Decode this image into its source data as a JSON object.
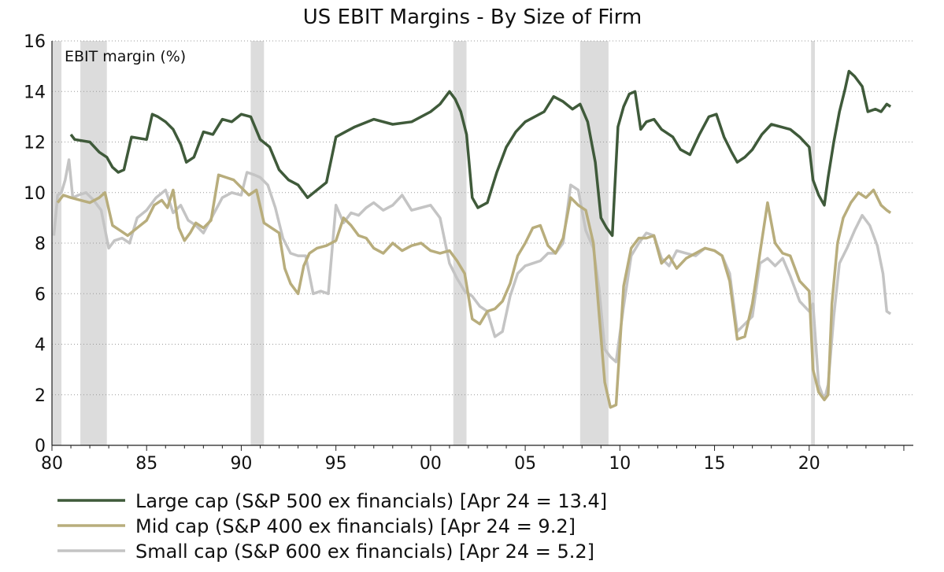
{
  "chart_data": {
    "type": "line",
    "title": "US EBIT Margins - By Size of Firm",
    "ylabel": "EBIT margin (%)",
    "xlabel": "",
    "xlim": [
      1980,
      2025.5
    ],
    "ylim": [
      0,
      16
    ],
    "y_ticks": [
      0,
      2,
      4,
      6,
      8,
      10,
      12,
      14,
      16
    ],
    "x_ticks": [
      {
        "value": 1980,
        "label": "80"
      },
      {
        "value": 1985,
        "label": "85"
      },
      {
        "value": 1990,
        "label": "90"
      },
      {
        "value": 1995,
        "label": "95"
      },
      {
        "value": 2000,
        "label": "00"
      },
      {
        "value": 2005,
        "label": "05"
      },
      {
        "value": 2010,
        "label": "10"
      },
      {
        "value": 2015,
        "label": "15"
      },
      {
        "value": 2020,
        "label": "20"
      }
    ],
    "grid": "horizontal dotted",
    "legend_position": "bottom",
    "recessions": [
      [
        1980.0,
        1980.5
      ],
      [
        1981.5,
        1982.9
      ],
      [
        1990.5,
        1991.2
      ],
      [
        2001.2,
        2001.9
      ],
      [
        2007.9,
        2009.4
      ],
      [
        2020.1,
        2020.3
      ]
    ],
    "series": [
      {
        "name": "Large cap (S&P 500 ex financials) [Apr 24 = 13.4]",
        "color": "#3f5a3a",
        "x": [
          1981,
          1981.2,
          1982,
          1982.5,
          1982.9,
          1983.2,
          1983.5,
          1983.8,
          1984.2,
          1985,
          1985.3,
          1985.6,
          1986,
          1986.4,
          1986.8,
          1987.1,
          1987.5,
          1988,
          1988.5,
          1989,
          1989.5,
          1990,
          1990.5,
          1991,
          1991.5,
          1992,
          1992.5,
          1993,
          1993.5,
          1994,
          1994.5,
          1995,
          1995.5,
          1996,
          1997,
          1998,
          1999,
          2000,
          2000.5,
          2001.0,
          2001.3,
          2001.6,
          2001.9,
          2002.2,
          2002.5,
          2003,
          2003.5,
          2004,
          2004.5,
          2005,
          2006,
          2006.5,
          2007,
          2007.5,
          2007.9,
          2008.3,
          2008.7,
          2009,
          2009.3,
          2009.6,
          2009.9,
          2010.2,
          2010.5,
          2010.8,
          2011.1,
          2011.4,
          2011.8,
          2012.2,
          2012.8,
          2013.2,
          2013.7,
          2014.2,
          2014.7,
          2015.1,
          2015.5,
          2015.9,
          2016.2,
          2016.6,
          2017,
          2017.5,
          2018,
          2018.5,
          2019,
          2019.5,
          2020.0,
          2020.2,
          2020.5,
          2020.8,
          2021.0,
          2021.3,
          2021.6,
          2021.9,
          2022.1,
          2022.4,
          2022.8,
          2023.1,
          2023.5,
          2023.8,
          2024.1,
          2024.3
        ],
        "values": [
          12.3,
          12.1,
          12.0,
          11.6,
          11.4,
          11.0,
          10.8,
          10.9,
          12.2,
          12.1,
          13.1,
          13.0,
          12.8,
          12.5,
          11.9,
          11.2,
          11.4,
          12.4,
          12.3,
          12.9,
          12.8,
          13.1,
          13.0,
          12.1,
          11.8,
          10.9,
          10.5,
          10.3,
          9.8,
          10.1,
          10.4,
          12.2,
          12.4,
          12.6,
          12.9,
          12.7,
          12.8,
          13.2,
          13.5,
          14.0,
          13.7,
          13.2,
          12.3,
          9.8,
          9.4,
          9.6,
          10.8,
          11.8,
          12.4,
          12.8,
          13.2,
          13.8,
          13.6,
          13.3,
          13.5,
          12.8,
          11.2,
          9.0,
          8.6,
          8.3,
          12.6,
          13.4,
          13.9,
          14.0,
          12.5,
          12.8,
          12.9,
          12.5,
          12.2,
          11.7,
          11.5,
          12.3,
          13.0,
          13.1,
          12.2,
          11.6,
          11.2,
          11.4,
          11.7,
          12.3,
          12.7,
          12.6,
          12.5,
          12.2,
          11.8,
          10.5,
          9.9,
          9.5,
          10.6,
          12.0,
          13.2,
          14.1,
          14.8,
          14.6,
          14.2,
          13.2,
          13.3,
          13.2,
          13.5,
          13.4
        ]
      },
      {
        "name": "Mid cap (S&P 400 ex financials) [Apr 24 = 9.2]",
        "color": "#b8ad7c",
        "x": [
          1980.3,
          1980.6,
          1981,
          1981.5,
          1982,
          1982.5,
          1982.8,
          1983.2,
          1983.6,
          1984,
          1984.5,
          1985,
          1985.4,
          1985.8,
          1986.1,
          1986.4,
          1986.7,
          1987,
          1987.3,
          1987.6,
          1988,
          1988.4,
          1988.8,
          1989.2,
          1989.6,
          1990,
          1990.4,
          1990.8,
          1991.2,
          1991.6,
          1992,
          1992.3,
          1992.6,
          1993.0,
          1993.3,
          1993.6,
          1994,
          1994.5,
          1995,
          1995.4,
          1995.8,
          1996.2,
          1996.6,
          1997,
          1997.5,
          1998,
          1998.5,
          1999,
          1999.5,
          2000,
          2000.5,
          2001,
          2001.4,
          2001.8,
          2002.2,
          2002.6,
          2003,
          2003.4,
          2003.8,
          2004.2,
          2004.6,
          2005,
          2005.4,
          2005.8,
          2006.2,
          2006.6,
          2007,
          2007.4,
          2007.8,
          2008.2,
          2008.6,
          2008.9,
          2009.2,
          2009.5,
          2009.8,
          2010.2,
          2010.6,
          2011,
          2011.4,
          2011.8,
          2012.2,
          2012.6,
          2013,
          2013.5,
          2014,
          2014.5,
          2015,
          2015.4,
          2015.8,
          2016.2,
          2016.6,
          2017,
          2017.4,
          2017.8,
          2018.2,
          2018.6,
          2019,
          2019.5,
          2020.0,
          2020.2,
          2020.5,
          2020.8,
          2021.0,
          2021.2,
          2021.5,
          2021.8,
          2022.2,
          2022.6,
          2023.0,
          2023.4,
          2023.8,
          2024.1,
          2024.3
        ],
        "values": [
          9.6,
          9.9,
          9.8,
          9.7,
          9.6,
          9.8,
          10.0,
          8.7,
          8.5,
          8.3,
          8.6,
          8.9,
          9.5,
          9.7,
          9.4,
          10.1,
          8.6,
          8.1,
          8.4,
          8.8,
          8.6,
          8.9,
          10.7,
          10.6,
          10.5,
          10.2,
          9.9,
          10.1,
          8.8,
          8.6,
          8.4,
          7.0,
          6.4,
          6.0,
          7.1,
          7.6,
          7.8,
          7.9,
          8.1,
          9.0,
          8.7,
          8.3,
          8.2,
          7.8,
          7.6,
          8.0,
          7.7,
          7.9,
          8.0,
          7.7,
          7.6,
          7.7,
          7.3,
          6.8,
          5.0,
          4.8,
          5.3,
          5.4,
          5.7,
          6.4,
          7.5,
          8.0,
          8.6,
          8.7,
          7.9,
          7.6,
          8.2,
          9.8,
          9.5,
          9.3,
          8.0,
          5.2,
          2.5,
          1.5,
          1.6,
          6.3,
          7.8,
          8.2,
          8.2,
          8.3,
          7.2,
          7.5,
          7.0,
          7.4,
          7.6,
          7.8,
          7.7,
          7.5,
          6.5,
          4.2,
          4.3,
          5.6,
          7.6,
          9.6,
          8.0,
          7.6,
          7.5,
          6.5,
          6.1,
          3.0,
          2.1,
          1.8,
          2.0,
          5.6,
          8.0,
          9.0,
          9.6,
          10.0,
          9.8,
          10.1,
          9.5,
          9.3,
          9.2
        ]
      },
      {
        "name": "Small cap (S&P 600 ex financials) [Apr 24 = 5.2]",
        "color": "#c4c4c4",
        "x": [
          1980.1,
          1980.3,
          1980.5,
          1980.7,
          1980.9,
          1981.1,
          1981.4,
          1981.8,
          1982.2,
          1982.6,
          1983.0,
          1983.3,
          1983.7,
          1984.1,
          1984.5,
          1985,
          1985.5,
          1986,
          1986.4,
          1986.8,
          1987.2,
          1987.6,
          1988,
          1988.5,
          1989,
          1989.5,
          1990,
          1990.3,
          1990.7,
          1991.0,
          1991.4,
          1991.8,
          1992.2,
          1992.6,
          1993.0,
          1993.4,
          1993.8,
          1994.2,
          1994.6,
          1995,
          1995.4,
          1995.8,
          1996.2,
          1996.6,
          1997.0,
          1997.5,
          1998,
          1998.5,
          1999,
          1999.5,
          2000,
          2000.5,
          2001,
          2001.4,
          2001.8,
          2002.2,
          2002.6,
          2003.0,
          2003.4,
          2003.8,
          2004.2,
          2004.6,
          2005,
          2005.4,
          2005.8,
          2006.2,
          2006.6,
          2007,
          2007.4,
          2007.8,
          2008.2,
          2008.6,
          2008.9,
          2009.2,
          2009.5,
          2009.8,
          2010.2,
          2010.6,
          2011,
          2011.4,
          2011.8,
          2012.2,
          2012.6,
          2013,
          2013.5,
          2014,
          2014.5,
          2015,
          2015.4,
          2015.8,
          2016.2,
          2016.6,
          2017,
          2017.4,
          2017.8,
          2018.2,
          2018.6,
          2019,
          2019.5,
          2020.0,
          2020.2,
          2020.5,
          2020.8,
          2021.0,
          2021.3,
          2021.6,
          2022.0,
          2022.4,
          2022.8,
          2023.2,
          2023.6,
          2023.9,
          2024.1,
          2024.3
        ],
        "values": [
          8.3,
          9.9,
          10.0,
          10.5,
          11.3,
          9.8,
          9.9,
          10.0,
          9.7,
          9.3,
          7.8,
          8.1,
          8.2,
          8.0,
          9.0,
          9.3,
          9.8,
          10.1,
          9.2,
          9.5,
          8.9,
          8.7,
          8.4,
          9.1,
          9.8,
          10.0,
          9.9,
          10.8,
          10.7,
          10.6,
          10.3,
          9.4,
          8.2,
          7.6,
          7.5,
          7.5,
          6.0,
          6.1,
          6.0,
          9.5,
          8.8,
          9.2,
          9.1,
          9.4,
          9.6,
          9.3,
          9.5,
          9.9,
          9.3,
          9.4,
          9.5,
          9.0,
          7.2,
          6.6,
          6.1,
          5.9,
          5.5,
          5.3,
          4.3,
          4.5,
          5.9,
          6.8,
          7.1,
          7.2,
          7.3,
          7.6,
          7.6,
          8.0,
          10.3,
          10.1,
          8.5,
          7.8,
          6.2,
          3.8,
          3.5,
          3.3,
          5.5,
          7.5,
          8.0,
          8.4,
          8.3,
          7.4,
          7.1,
          7.7,
          7.6,
          7.5,
          7.8,
          7.7,
          7.5,
          6.8,
          4.5,
          4.8,
          5.1,
          7.2,
          7.4,
          7.1,
          7.4,
          6.7,
          5.7,
          5.3,
          5.6,
          2.4,
          1.8,
          2.4,
          5.1,
          7.2,
          7.8,
          8.5,
          9.1,
          8.7,
          7.9,
          6.8,
          5.3,
          5.2
        ]
      }
    ]
  }
}
